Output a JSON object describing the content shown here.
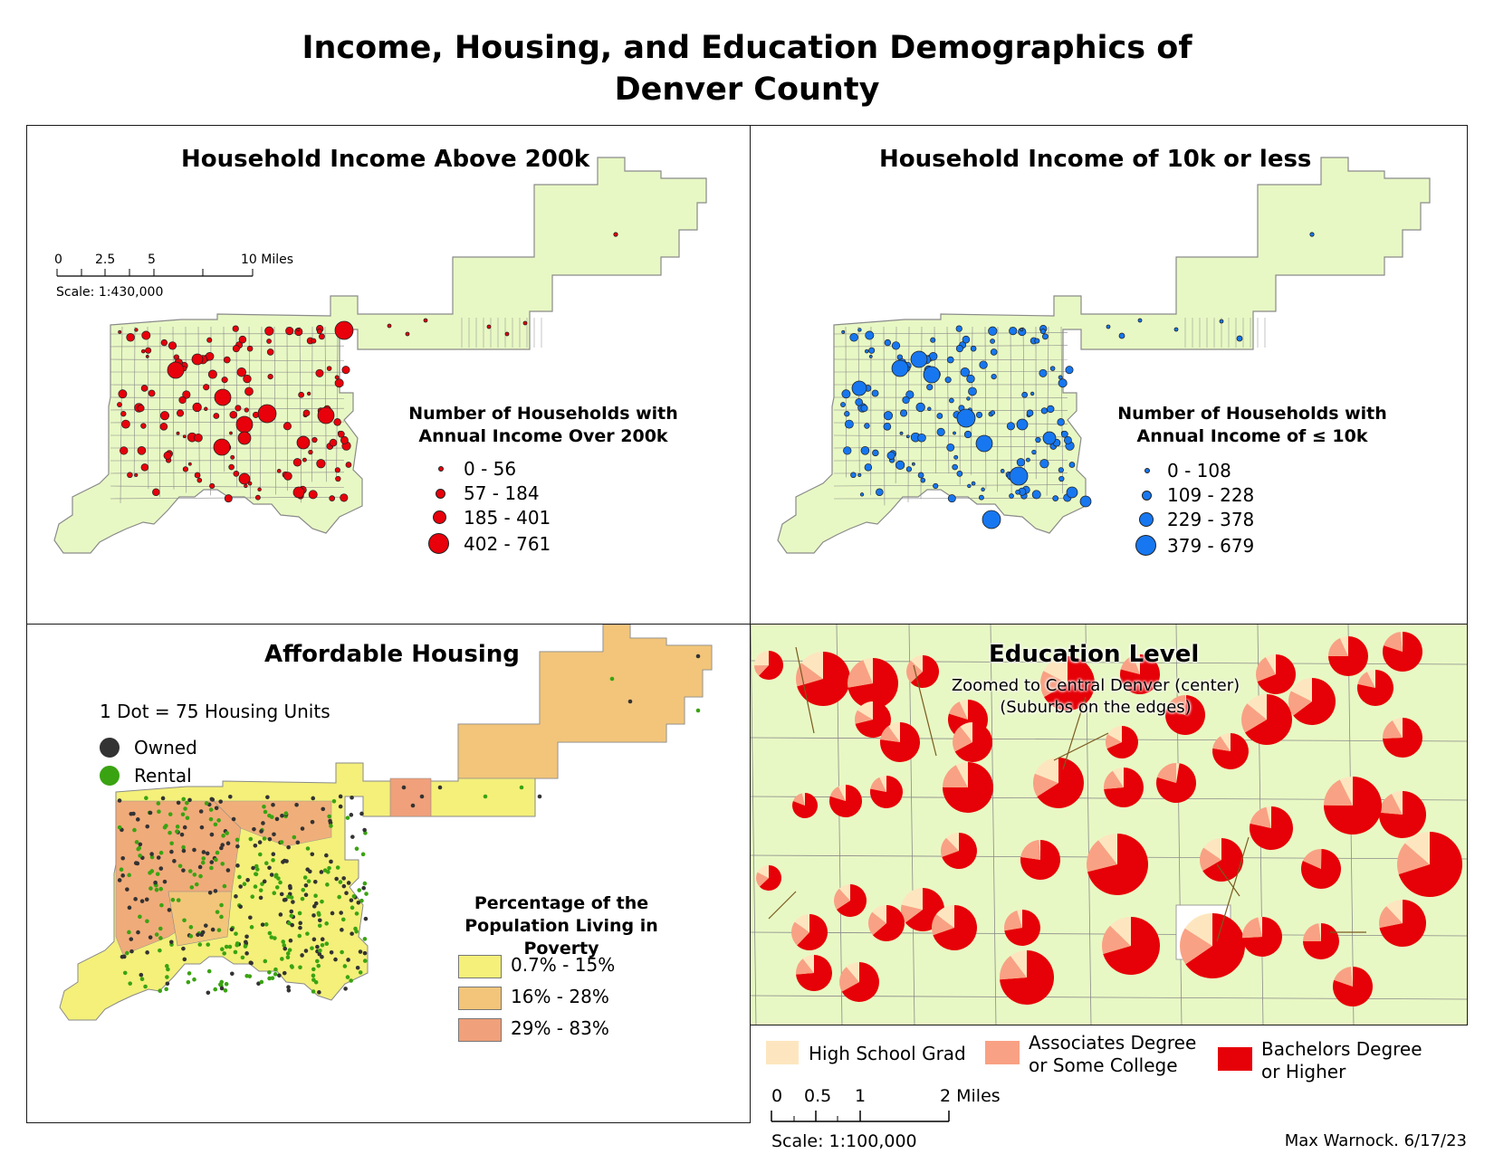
{
  "title_line1": "Income, Housing, and Education Demographics of",
  "title_line2": "Denver County",
  "colors": {
    "land": "#e8f8c4",
    "boundary": "#8a8a8a",
    "red": "#e8000b",
    "blue": "#1777f0",
    "owned": "#333333",
    "rental": "#3aa312",
    "poverty_low": "#f4f07a",
    "poverty_mid": "#f2c57a",
    "poverty_high": "#f0a07a",
    "edu_hs": "#fde6bf",
    "edu_assoc": "#f9a184",
    "edu_bach": "#e60007"
  },
  "panel_high_income": {
    "title": "Household Income Above 200k",
    "legend_title_1": "Number of Households with",
    "legend_title_2": "Annual Income Over 200k",
    "classes": [
      "0 - 56",
      "57 - 184",
      "185 - 401",
      "402 - 761"
    ],
    "scale": {
      "ticks": [
        "0",
        "2.5",
        "5",
        "10 Miles"
      ],
      "ratio": "Scale: 1:430,000"
    }
  },
  "panel_low_income": {
    "title": "Household Income of 10k or less",
    "legend_title_1": "Number of Households with",
    "legend_title_2": "Annual Income of ≤ 10k",
    "classes": [
      "0 - 108",
      "109 - 228",
      "229 - 378",
      "379 - 679"
    ]
  },
  "panel_housing": {
    "title": "Affordable Housing",
    "dot_note": "1 Dot = 75 Housing Units",
    "owned_label": "Owned",
    "rental_label": "Rental",
    "legend_title_1": "Percentage of the",
    "legend_title_2": "Population Living in Poverty",
    "classes": [
      "0.7% - 15%",
      "16% - 28%",
      "29% - 83%"
    ]
  },
  "panel_education": {
    "title": "Education Level",
    "subtitle_1": "Zoomed to Central Denver (center)",
    "subtitle_2": "(Suburbs on the edges)",
    "legend": {
      "hs": "High School Grad",
      "assoc_1": "Associates Degree",
      "assoc_2": "or Some College",
      "bach_1": "Bachelors Degree",
      "bach_2": "or Higher"
    },
    "scale": {
      "ticks": [
        "0",
        "0.5",
        "1",
        "2 Miles"
      ],
      "ratio": "Scale: 1:100,000"
    }
  },
  "credit": "Max Warnock. 6/17/23"
}
